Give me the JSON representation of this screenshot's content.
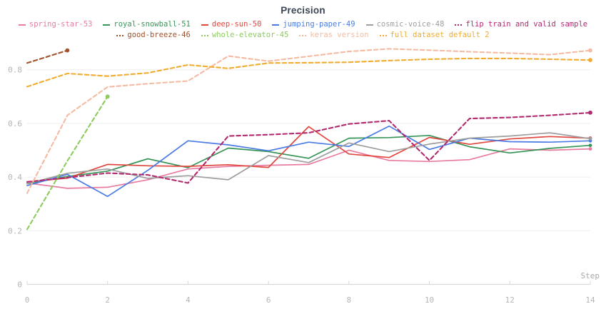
{
  "title": "Precision",
  "chart_data": {
    "type": "line",
    "title": "Precision",
    "xlabel": "Step",
    "ylabel": "",
    "xlim": [
      0,
      14
    ],
    "ylim": [
      0,
      0.91
    ],
    "x_ticks": [
      0,
      2,
      4,
      6,
      8,
      10,
      12,
      14
    ],
    "y_ticks": [
      0,
      0.2,
      0.4,
      0.6,
      0.8
    ],
    "grid": "horizontal-only",
    "legend_position": "top-two-rows",
    "legend_rows": [
      [
        "spring-star-53",
        "royal-snowball-51",
        "deep-sun-50",
        "jumping-paper-49",
        "cosmic-voice-48",
        "flip train and valid sample"
      ],
      [
        "good-breeze-46",
        "whole-elevator-45",
        "keras version",
        "full dataset default 2"
      ]
    ],
    "series": [
      {
        "name": "spring-star-53",
        "color": "#e87ba1",
        "dashed": false,
        "x": [
          0,
          1,
          2,
          3,
          4,
          5,
          6,
          7,
          8,
          9,
          10,
          11,
          12,
          13,
          14
        ],
        "values": [
          0.378,
          0.358,
          0.362,
          0.39,
          0.43,
          0.44,
          0.444,
          0.447,
          0.5,
          0.462,
          0.458,
          0.465,
          0.505,
          0.5,
          0.505
        ]
      },
      {
        "name": "royal-snowball-51",
        "color": "#379457",
        "dashed": false,
        "x": [
          0,
          1,
          2,
          3,
          4,
          5,
          6,
          7,
          8,
          9,
          10,
          11,
          12,
          13,
          14
        ],
        "values": [
          0.375,
          0.402,
          0.422,
          0.468,
          0.435,
          0.508,
          0.495,
          0.47,
          0.545,
          0.547,
          0.555,
          0.513,
          0.49,
          0.507,
          0.518
        ]
      },
      {
        "name": "deep-sun-50",
        "color": "#e0473d",
        "dashed": false,
        "x": [
          0,
          1,
          2,
          3,
          4,
          5,
          6,
          7,
          8,
          9,
          10,
          11,
          12,
          13,
          14
        ],
        "values": [
          0.382,
          0.396,
          0.447,
          0.442,
          0.44,
          0.446,
          0.436,
          0.588,
          0.486,
          0.473,
          0.548,
          0.522,
          0.542,
          0.551,
          0.545
        ]
      },
      {
        "name": "jumping-paper-49",
        "color": "#4a7be4",
        "dashed": false,
        "x": [
          0,
          1,
          2,
          3,
          4,
          5,
          6,
          7,
          8,
          9,
          10,
          11,
          12,
          13,
          14
        ],
        "values": [
          0.368,
          0.41,
          0.328,
          0.425,
          0.535,
          0.52,
          0.498,
          0.53,
          0.514,
          0.59,
          0.503,
          0.545,
          0.532,
          0.53,
          0.535
        ]
      },
      {
        "name": "cosmic-voice-48",
        "color": "#9e9e9e",
        "dashed": false,
        "x": [
          0,
          1,
          2,
          3,
          4,
          5,
          6,
          7,
          8,
          9,
          10,
          11,
          12,
          13,
          14
        ],
        "values": [
          0.375,
          0.414,
          0.43,
          0.395,
          0.405,
          0.39,
          0.48,
          0.454,
          0.527,
          0.495,
          0.523,
          0.545,
          0.553,
          0.565,
          0.543
        ]
      },
      {
        "name": "flip train and valid sample",
        "color": "#b12a70",
        "dashed": true,
        "x": [
          0,
          1,
          2,
          3,
          4,
          5,
          6,
          7,
          8,
          9,
          10,
          11,
          12,
          13,
          14
        ],
        "values": [
          0.382,
          0.398,
          0.415,
          0.408,
          0.378,
          0.553,
          0.558,
          0.565,
          0.598,
          0.61,
          0.462,
          0.618,
          0.622,
          0.63,
          0.64
        ]
      },
      {
        "name": "good-breeze-46",
        "color": "#a0522d",
        "dashed": true,
        "x": [
          0,
          1
        ],
        "values": [
          0.825,
          0.872
        ]
      },
      {
        "name": "whole-elevator-45",
        "color": "#8ccb5e",
        "dashed": true,
        "x": [
          0,
          1,
          2
        ],
        "values": [
          0.205,
          0.46,
          0.7
        ]
      },
      {
        "name": "keras version",
        "color": "#f5baa2",
        "dashed": true,
        "x": [
          0,
          1,
          2,
          3,
          4,
          5,
          6,
          7,
          8,
          9,
          10,
          11,
          12,
          13,
          14
        ],
        "values": [
          0.34,
          0.63,
          0.736,
          0.748,
          0.758,
          0.851,
          0.832,
          0.85,
          0.868,
          0.878,
          0.873,
          0.867,
          0.862,
          0.856,
          0.872
        ]
      },
      {
        "name": "full dataset default 2",
        "color": "#f0ac2f",
        "dashed": true,
        "x": [
          0,
          1,
          2,
          3,
          4,
          5,
          6,
          7,
          8,
          9,
          10,
          11,
          12,
          13,
          14
        ],
        "values": [
          0.737,
          0.786,
          0.776,
          0.788,
          0.818,
          0.805,
          0.825,
          0.826,
          0.828,
          0.834,
          0.839,
          0.842,
          0.842,
          0.839,
          0.836
        ]
      }
    ]
  },
  "colors": {
    "grid": "#ededed",
    "axis": "#d9d9d9",
    "tick_label": "#b5b5b5",
    "axis_name_label": "#a8a8a8",
    "title": "#3b4554",
    "background": "#ffffff"
  }
}
